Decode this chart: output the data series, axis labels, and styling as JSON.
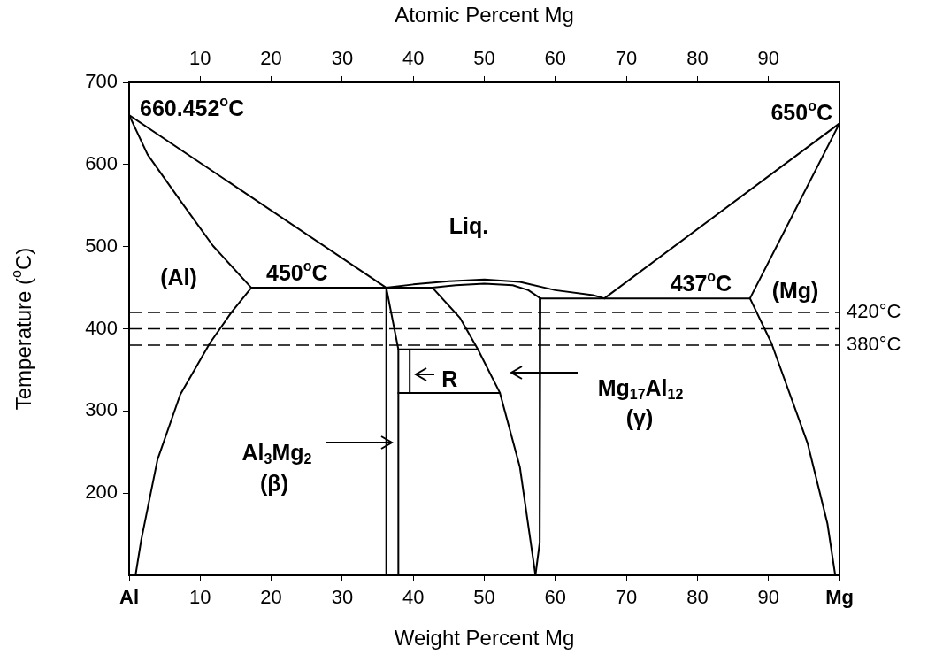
{
  "chart_data": {
    "type": "line",
    "xlabel": "Weight Percent Mg",
    "x2label": "Atomic Percent Mg",
    "ylabel": "Temperature ($^{o}$C)",
    "xlim": [
      0,
      100
    ],
    "xticks": [
      {
        "value": 0,
        "label": "Al"
      },
      10,
      20,
      30,
      40,
      50,
      60,
      70,
      80,
      90,
      {
        "value": 100,
        "label": "Mg"
      }
    ],
    "x2lim": [
      0,
      100
    ],
    "x2ticks": [
      10,
      20,
      30,
      40,
      50,
      60,
      70,
      80,
      90
    ],
    "ylim": [
      100,
      700
    ],
    "yticks": [
      200,
      300,
      400,
      500,
      600,
      700
    ],
    "grid": false,
    "legend": false,
    "marker": "none",
    "line_style": "solid",
    "series": [
      {
        "color": "#000000",
        "x": [
          0,
          36.2
        ],
        "values": [
          660,
          450
        ]
      },
      {
        "color": "#000000",
        "x": [
          0,
          2.6,
          7.2,
          11.8,
          17.2
        ],
        "values": [
          660,
          612,
          556,
          501,
          450
        ]
      },
      {
        "color": "#000000",
        "x": [
          17.2,
          14.4,
          11.4,
          7.2,
          4.0,
          1.7,
          0.9
        ],
        "values": [
          450,
          420,
          383,
          320,
          241,
          143,
          100
        ]
      },
      {
        "color": "#000000",
        "x": [
          17.2,
          42.7,
          46,
          50,
          54,
          56.2,
          57.9
        ],
        "values": [
          450,
          450,
          453,
          455,
          453,
          447,
          437
        ]
      },
      {
        "color": "#000000",
        "x": [
          36.2,
          36.2
        ],
        "values": [
          450,
          100
        ]
      },
      {
        "color": "#000000",
        "x": [
          36.2,
          37.9,
          37.9
        ],
        "values": [
          450,
          375,
          100
        ]
      },
      {
        "color": "#000000",
        "x": [
          37.9,
          49.1
        ],
        "values": [
          375,
          375
        ]
      },
      {
        "color": "#000000",
        "x": [
          37.9,
          52.2
        ],
        "values": [
          322,
          322
        ]
      },
      {
        "color": "#000000",
        "x": [
          39.5,
          39.5
        ],
        "values": [
          375,
          322
        ]
      },
      {
        "color": "#000000",
        "x": [
          36.2,
          40,
          45,
          50,
          55,
          60,
          65.3,
          66.9
        ],
        "values": [
          450,
          454,
          458,
          460,
          457,
          447,
          441,
          437
        ]
      },
      {
        "color": "#000000",
        "x": [
          42.7,
          46.6,
          49.1,
          52.2,
          55.0,
          57.2
        ],
        "values": [
          450,
          413,
          375,
          322,
          232,
          100
        ]
      },
      {
        "color": "#000000",
        "x": [
          57.9,
          57.8,
          57.2
        ],
        "values": [
          437,
          140,
          100
        ]
      },
      {
        "color": "#000000",
        "x": [
          57.9,
          87.4
        ],
        "values": [
          437,
          437
        ]
      },
      {
        "color": "#000000",
        "x": [
          66.9,
          100
        ],
        "values": [
          437,
          650
        ]
      },
      {
        "color": "#000000",
        "x": [
          87.4,
          100
        ],
        "values": [
          437,
          650
        ]
      },
      {
        "color": "#000000",
        "x": [
          87.4,
          90.4,
          95.5,
          98.3,
          99.4
        ],
        "values": [
          437,
          383,
          261,
          163,
          100
        ]
      }
    ],
    "ref_lines": [
      {
        "axis": "y",
        "value": 420,
        "label": "420°C",
        "color": "#000000",
        "line_style": "dashed"
      },
      {
        "axis": "y",
        "value": 400,
        "label": null,
        "color": "#000000",
        "line_style": "dashed"
      },
      {
        "axis": "y",
        "value": 380,
        "label": "380°C",
        "color": "#000000",
        "line_style": "dashed"
      }
    ],
    "annotations": [
      {
        "text": "660.452$^{o}$C",
        "x": 0,
        "y": 660
      },
      {
        "text": "650$^{o}$C",
        "x": 100,
        "y": 650
      },
      {
        "text": "450$^{o}$C",
        "x": 26,
        "y": 450
      },
      {
        "text": "437$^{o}$C",
        "x": 80,
        "y": 437
      },
      "Liq.",
      "(Al)",
      "(Mg)",
      {
        "text": "R",
        "x": 40,
        "y": 345
      },
      "Al$_{3}$Mg$_{2}$",
      "(β)",
      "Mg$_{17}$Al$_{12}$",
      "(γ)"
    ]
  }
}
